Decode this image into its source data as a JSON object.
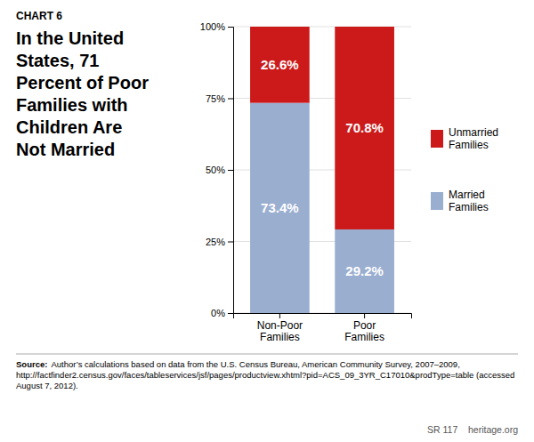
{
  "chart_data": {
    "type": "bar",
    "title": "In the United\nStates, 71\nPercent of Poor\nFamilies with\nChildren Are\nNot Married",
    "annotations": [
      "CHART 6",
      "Source:",
      "Author’s calculations based on data from the U.S. Census Bureau, American Community Survey, 2007–2009, http://factfinder2.census.gov/faces/tableservices/jsf/pages/productview.xhtml?pid=ACS_09_3YR_C17010&prodType=table (accessed August 7, 2012).",
      "SR 117    heritage.org"
    ],
    "categories": [
      "Non-Poor\nFamilies",
      "Poor\nFamilies"
    ],
    "series": [
      {
        "name": "Married\nFamilies",
        "color": "#9aaed0",
        "values": [
          73.4,
          29.2
        ],
        "value_labels": [
          "73.4%",
          "29.2%"
        ]
      },
      {
        "name": "Unmarried\nFamilies",
        "color": "#cc1a1a",
        "values": [
          26.6,
          70.8
        ],
        "value_labels": [
          "26.6%",
          "70.8%"
        ]
      }
    ],
    "stacked": true,
    "data_labels": true,
    "ylim": [
      0,
      100
    ],
    "yticks": [
      {
        "value": 0,
        "label": "0%"
      },
      {
        "value": 25,
        "label": "25%"
      },
      {
        "value": 50,
        "label": "50%"
      },
      {
        "value": 75,
        "label": "75%"
      },
      {
        "value": 100,
        "label": "100%"
      }
    ],
    "grid": true,
    "legend": "right"
  }
}
